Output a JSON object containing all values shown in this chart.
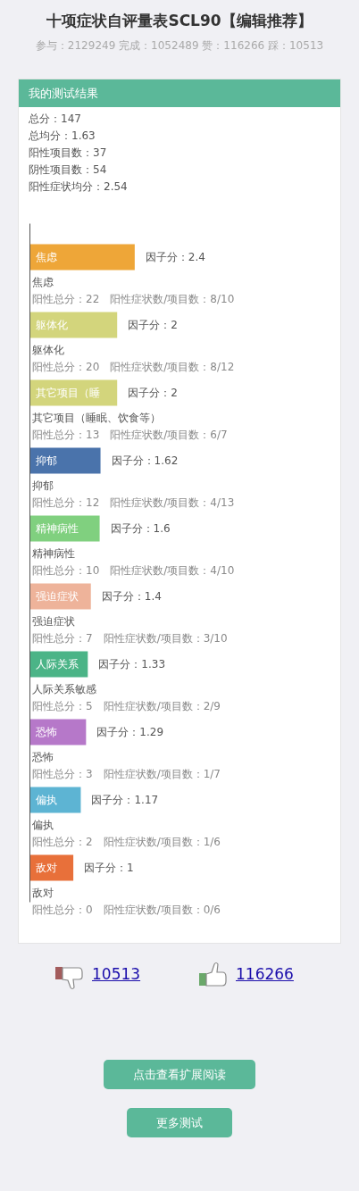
{
  "chart_data": {
    "type": "bar",
    "orientation": "horizontal",
    "title": "十项症状自评量表SCL90【编辑推荐】",
    "subtitle": "参与：2129249 完成：1052489 赞：116266 踩：10513",
    "categories": [
      "焦虑",
      "躯体化",
      "其它项目（睡",
      "抑郁",
      "精神病性",
      "强迫症状",
      "人际关系",
      "恐怖",
      "偏执",
      "敌对"
    ],
    "values": [
      2.4,
      2,
      2,
      1.62,
      1.6,
      1.4,
      1.33,
      1.29,
      1.17,
      1
    ],
    "colors": [
      "#eea638",
      "#d3d57c",
      "#d3d57c",
      "#4a73ab",
      "#80d07f",
      "#eeb39a",
      "#4bb487",
      "#b678c9",
      "#5db4d3",
      "#e8703a"
    ],
    "value_labels": [
      "因子分：2.4",
      "因子分：2",
      "因子分：2",
      "因子分：1.62",
      "因子分：1.6",
      "因子分：1.4",
      "因子分：1.33",
      "因子分：1.29",
      "因子分：1.17",
      "因子分：1"
    ],
    "annotations": [
      "我的测试结果",
      "总分：147",
      "总均分：1.63",
      "阳性项目数：37",
      "阴性项目数：54",
      "阳性症状均分：2.54",
      "焦虑",
      "阳性总分：22　阳性症状数/项目数：8/10",
      "躯体化",
      "阳性总分：20　阳性症状数/项目数：8/12",
      "其它项目（睡眠、饮食等）",
      "阳性总分：13　阳性症状数/项目数：6/7",
      "抑郁",
      "阳性总分：12　阳性症状数/项目数：4/13",
      "精神病性",
      "阳性总分：10　阳性症状数/项目数：4/10",
      "强迫症状",
      "阳性总分：7　阳性症状数/项目数：3/10",
      "人际关系敏感",
      "阳性总分：5　阳性症状数/项目数：2/9",
      "恐怖",
      "阳性总分：3　阳性症状数/项目数：1/7",
      "偏执",
      "阳性总分：2　阳性症状数/项目数：1/6",
      "敌对",
      "阳性总分：0　阳性症状数/项目数：0/6",
      "10513",
      "116266",
      "点击查看扩展阅读",
      "更多测试"
    ]
  }
}
